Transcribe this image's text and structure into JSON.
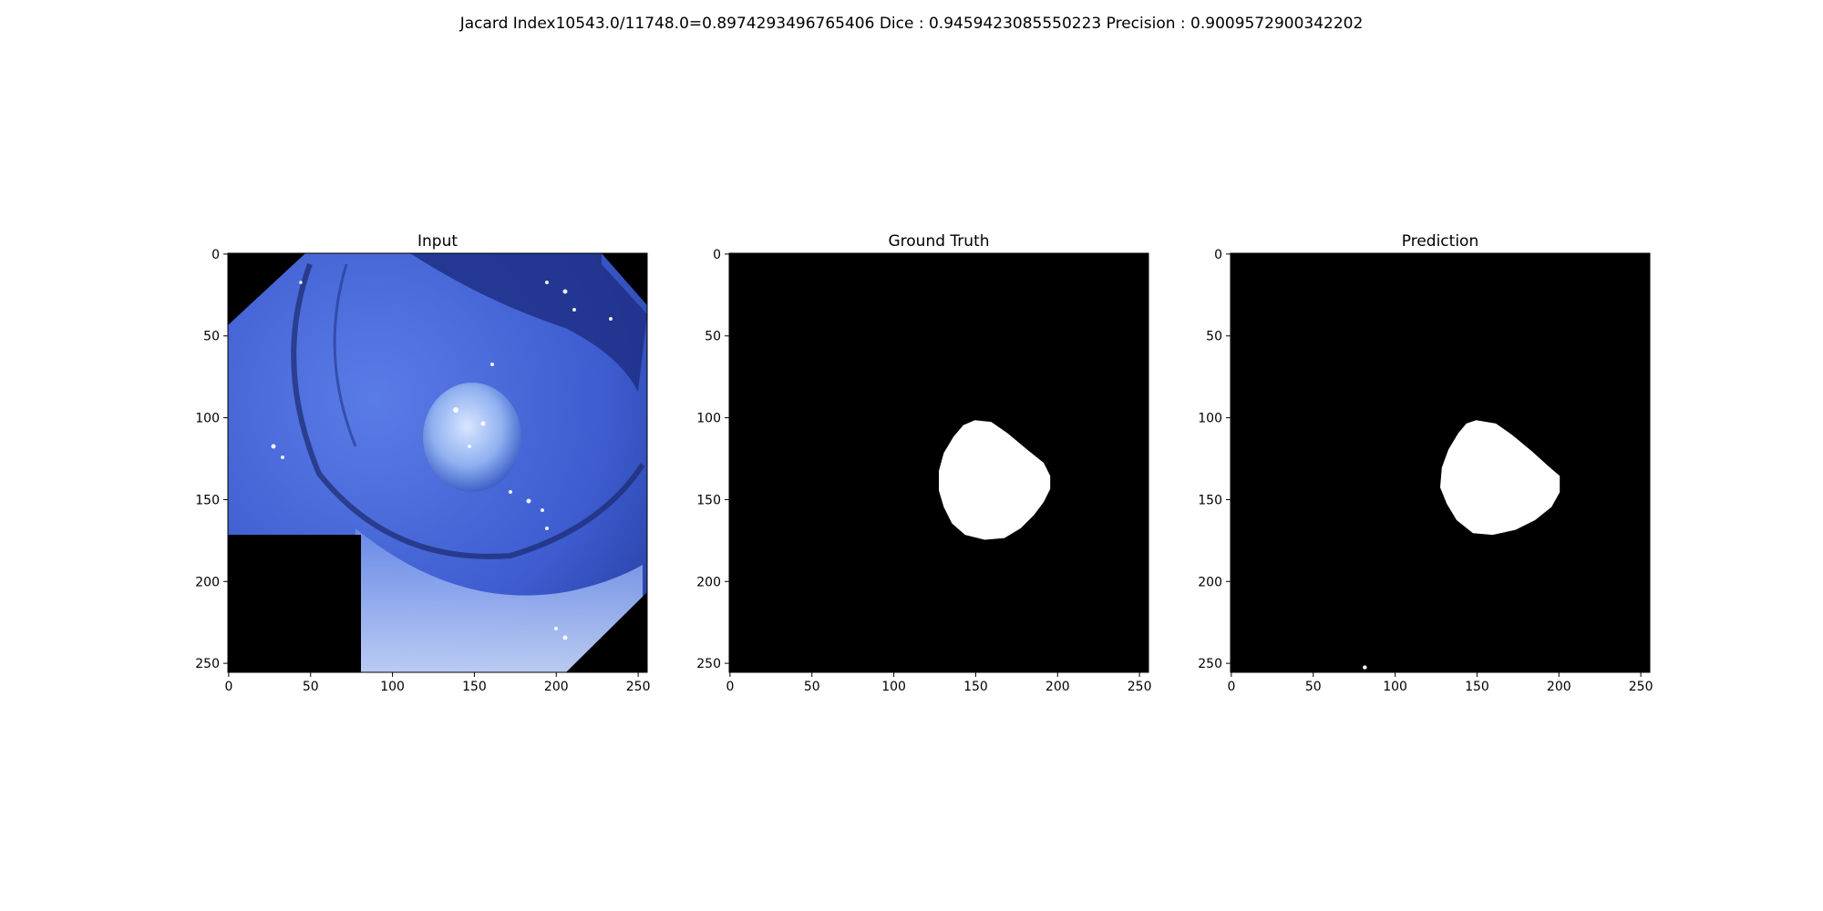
{
  "figure": {
    "suptitle": "Jacard Index10543.0/11748.0=0.8974293496765406 Dice : 0.9459423085550223 Precision : 0.9009572900342202"
  },
  "chart_data": [
    {
      "type": "image",
      "title": "Input",
      "xlim": [
        0,
        255
      ],
      "ylim": [
        255,
        0
      ],
      "xticks": [
        0,
        50,
        100,
        150,
        200,
        250
      ],
      "yticks": [
        0,
        50,
        100,
        150,
        200,
        250
      ],
      "xtick_labels": [
        "0",
        "50",
        "100",
        "150",
        "200",
        "250"
      ],
      "ytick_labels": [
        "0",
        "50",
        "100",
        "150",
        "200",
        "250"
      ],
      "colors": {
        "tissue": "#4a6ad8",
        "dark": "#1c2a78",
        "polyp": "#a8c4f4",
        "mask_fill": "#000000"
      }
    },
    {
      "type": "image",
      "title": "Ground Truth",
      "xlim": [
        0,
        255
      ],
      "ylim": [
        255,
        0
      ],
      "xticks": [
        0,
        50,
        100,
        150,
        200,
        250
      ],
      "yticks": [
        0,
        50,
        100,
        150,
        200,
        250
      ],
      "xtick_labels": [
        "0",
        "50",
        "100",
        "150",
        "200",
        "250"
      ],
      "ytick_labels": [
        "0",
        "50",
        "100",
        "150",
        "200",
        "250"
      ],
      "mask_outline": [
        [
          150,
          102
        ],
        [
          160,
          103
        ],
        [
          170,
          110
        ],
        [
          182,
          120
        ],
        [
          192,
          128
        ],
        [
          196,
          136
        ],
        [
          196,
          144
        ],
        [
          192,
          152
        ],
        [
          186,
          160
        ],
        [
          178,
          168
        ],
        [
          168,
          174
        ],
        [
          156,
          175
        ],
        [
          144,
          172
        ],
        [
          136,
          165
        ],
        [
          131,
          155
        ],
        [
          128,
          145
        ],
        [
          128,
          133
        ],
        [
          131,
          122
        ],
        [
          137,
          112
        ],
        [
          143,
          105
        ]
      ],
      "colors": {
        "background": "#000000",
        "mask": "#ffffff"
      }
    },
    {
      "type": "image",
      "title": "Prediction",
      "xlim": [
        0,
        255
      ],
      "ylim": [
        255,
        0
      ],
      "xticks": [
        0,
        50,
        100,
        150,
        200,
        250
      ],
      "yticks": [
        0,
        50,
        100,
        150,
        200,
        250
      ],
      "xtick_labels": [
        "0",
        "50",
        "100",
        "150",
        "200",
        "250"
      ],
      "ytick_labels": [
        "0",
        "50",
        "100",
        "150",
        "200",
        "250"
      ],
      "mask_outline": [
        [
          150,
          102
        ],
        [
          162,
          104
        ],
        [
          172,
          111
        ],
        [
          184,
          121
        ],
        [
          194,
          130
        ],
        [
          201,
          136
        ],
        [
          201,
          146
        ],
        [
          196,
          155
        ],
        [
          186,
          163
        ],
        [
          174,
          169
        ],
        [
          160,
          172
        ],
        [
          148,
          171
        ],
        [
          138,
          163
        ],
        [
          132,
          153
        ],
        [
          128,
          143
        ],
        [
          129,
          131
        ],
        [
          133,
          120
        ],
        [
          139,
          110
        ],
        [
          144,
          104
        ]
      ],
      "speck": [
        82,
        253
      ],
      "colors": {
        "background": "#000000",
        "mask": "#ffffff"
      }
    }
  ]
}
